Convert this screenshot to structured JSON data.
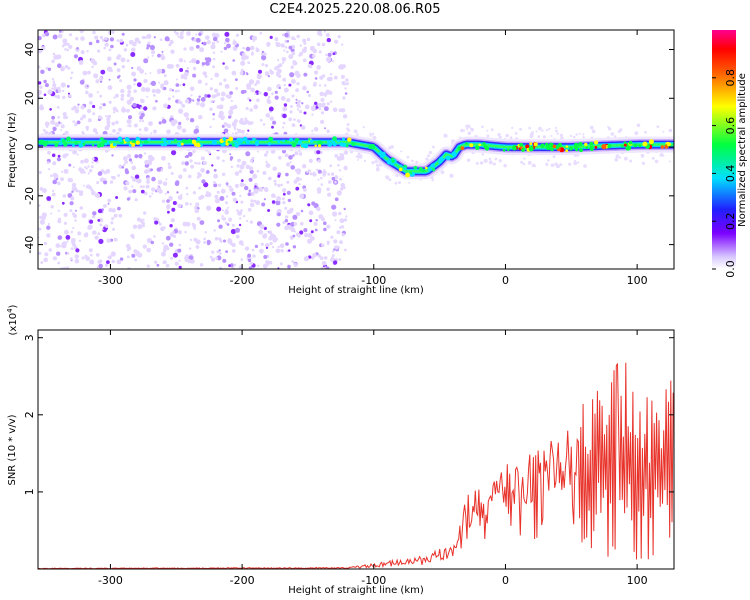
{
  "title": "C2E4.2025.220.08.06.R05",
  "chart_data": [
    {
      "type": "heatmap",
      "xlabel": "Height of straight line (km)",
      "ylabel": "Frequency (Hz)",
      "xlim": [
        -355,
        128
      ],
      "ylim": [
        -50,
        48
      ],
      "xticks": [
        -300,
        -200,
        -100,
        0,
        100
      ],
      "yticks": [
        -40,
        -20,
        0,
        20,
        40
      ],
      "colorbar": {
        "label": "Normalized spectral amplitude",
        "range": [
          0,
          1
        ],
        "ticks": [
          "0.0",
          "0.2",
          "0.4",
          "0.6",
          "0.8"
        ],
        "colormap": "rainbow (white-violet-blue-cyan-green-yellow-red-magenta)"
      },
      "ridge": {
        "x": [
          -355,
          -300,
          -200,
          -120,
          -100,
          -90,
          -75,
          -60,
          -50,
          -45,
          -40,
          -35,
          -30,
          -20,
          0,
          50,
          100,
          128
        ],
        "y": [
          2,
          2,
          2,
          2,
          0,
          -5,
          -10,
          -10,
          -6,
          -3,
          -4,
          0,
          1,
          1,
          0,
          0,
          1,
          1
        ]
      },
      "noise_region_x": [
        -355,
        -120
      ],
      "grid": false
    },
    {
      "type": "line",
      "xlabel": "Height of straight line (km)",
      "ylabel": "SNR (10 * v/v)",
      "y_multiplier": "(x10^4)",
      "y_multiplier_base": "(x10",
      "y_multiplier_exp": "4",
      "xlim": [
        -355,
        128
      ],
      "ylim": [
        0,
        3.1
      ],
      "xticks": [
        -300,
        -200,
        -100,
        0,
        100
      ],
      "yticks": [
        1,
        2,
        3
      ],
      "series": [
        {
          "color": "#e8322a",
          "envelope": {
            "x": [
              -355,
              -120,
              -60,
              -45,
              -35,
              -30,
              -20,
              -10,
              0,
              20,
              40,
              55,
              65,
              80,
              100,
              110,
              128
            ],
            "y": [
              0.01,
              0.02,
              0.18,
              0.3,
              0.6,
              0.95,
              1.05,
              1.2,
              1.35,
              1.55,
              1.75,
              1.85,
              2.2,
              2.4,
              2.2,
              2.1,
              2.4
            ]
          }
        }
      ],
      "grid": false
    }
  ]
}
